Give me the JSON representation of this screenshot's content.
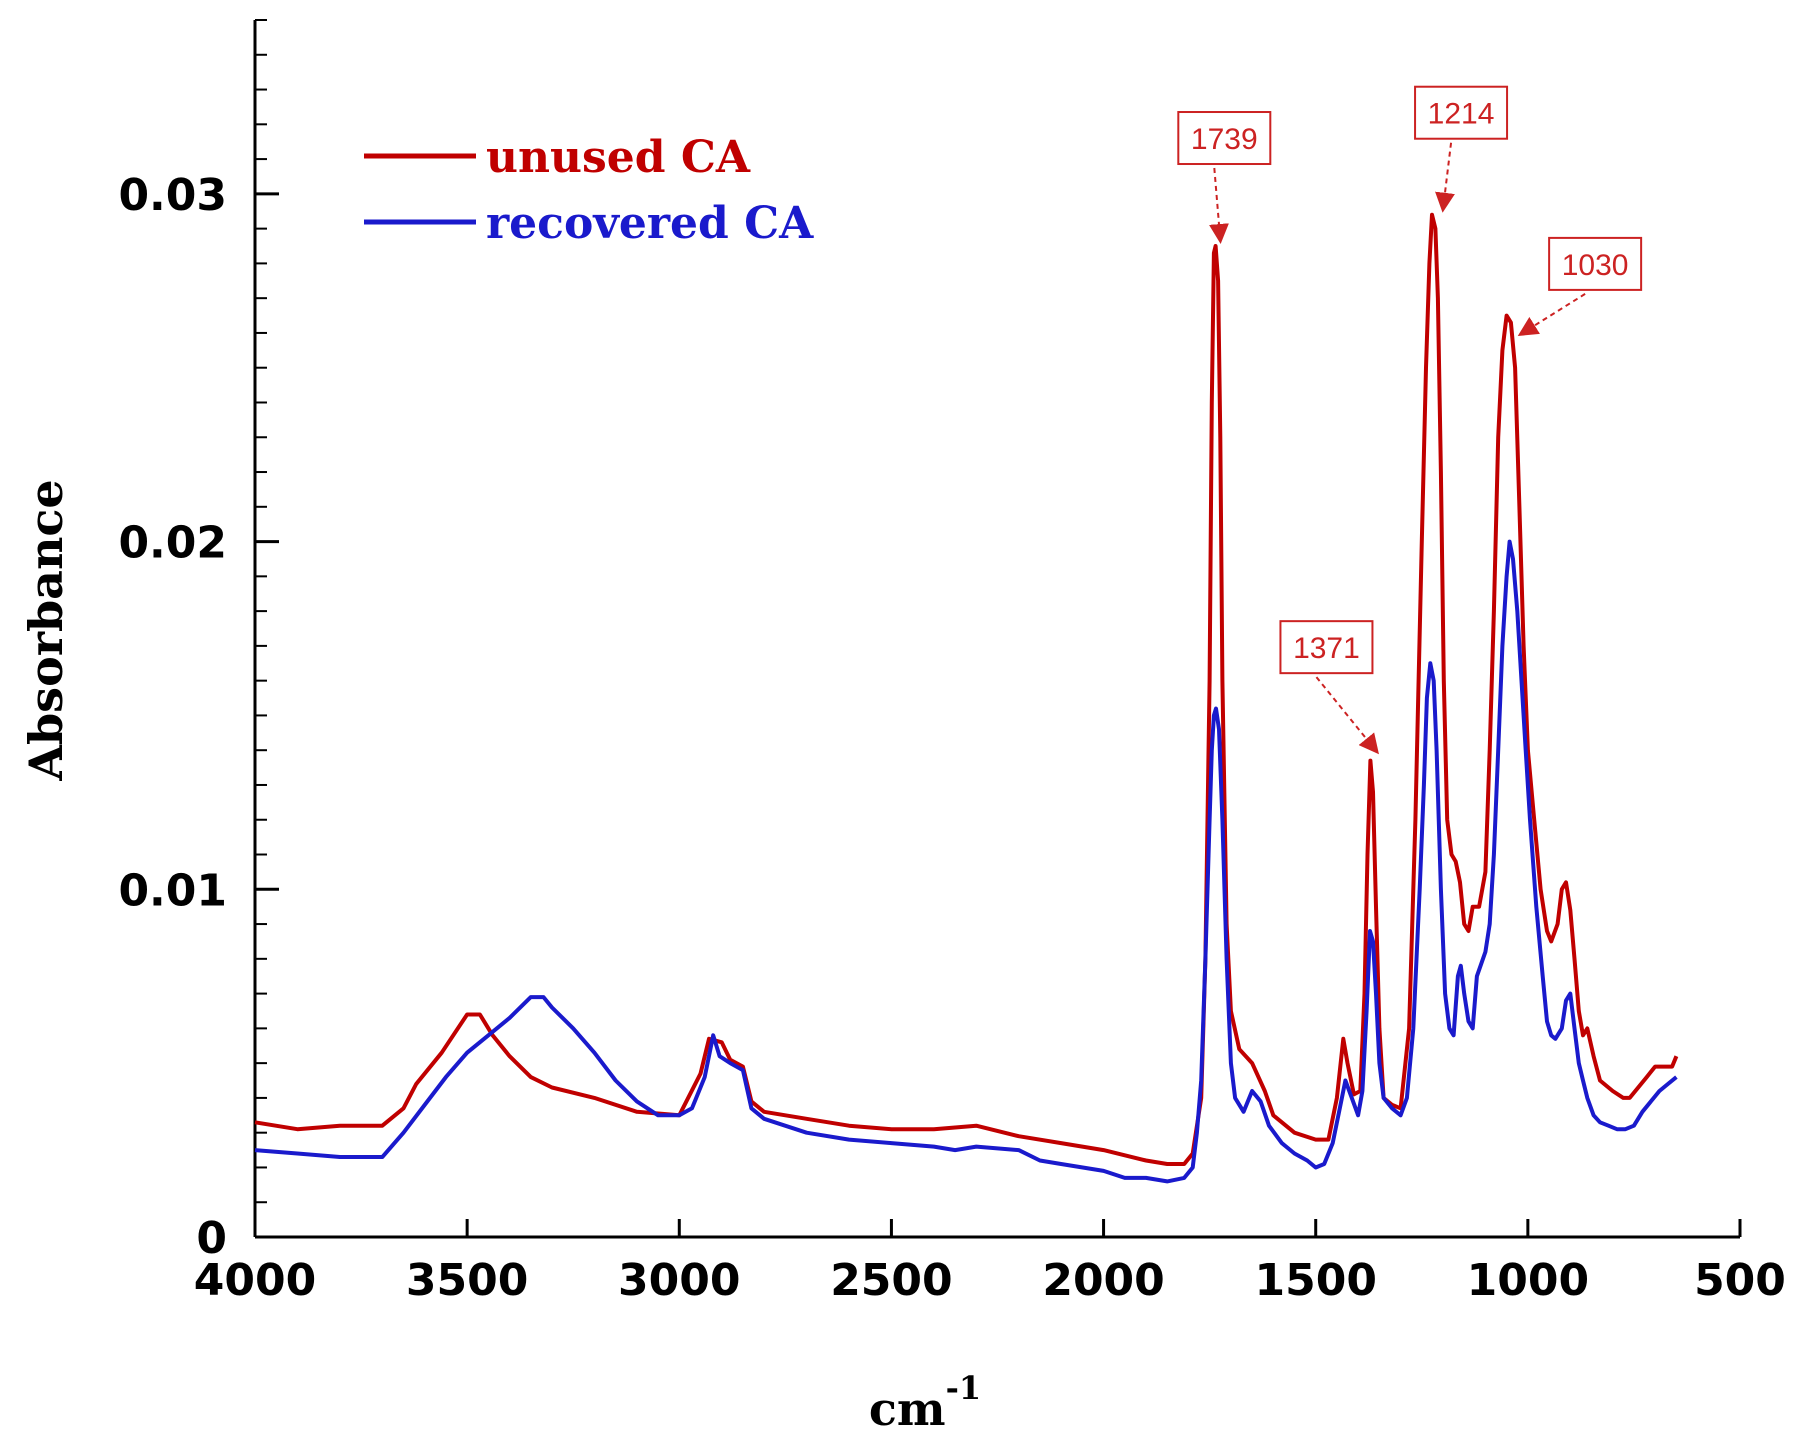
{
  "chart_data": {
    "type": "line",
    "xlabel": "cm",
    "xlabel_sup": "-1",
    "ylabel": "Absorbance",
    "xlim": [
      4000,
      500
    ],
    "ylim": [
      0,
      0.035
    ],
    "x_ticks": [
      4000,
      3500,
      3000,
      2500,
      2000,
      1500,
      1000,
      500
    ],
    "x_tick_labels": [
      "4000",
      "3500",
      "3000",
      "2500",
      "2000",
      "1500",
      "1000",
      "500"
    ],
    "y_ticks": [
      0,
      0.01,
      0.02,
      0.03
    ],
    "y_tick_labels": [
      "0",
      "0.01",
      "0.02",
      "0.03"
    ],
    "y_minor_step": 0.001,
    "series": [
      {
        "name": "unused CA",
        "color": "#c00000",
        "points": [
          [
            4000,
            0.0033
          ],
          [
            3900,
            0.0031
          ],
          [
            3800,
            0.0032
          ],
          [
            3700,
            0.0032
          ],
          [
            3650,
            0.0037
          ],
          [
            3620,
            0.0044
          ],
          [
            3560,
            0.0053
          ],
          [
            3500,
            0.0064
          ],
          [
            3470,
            0.0064
          ],
          [
            3440,
            0.0058
          ],
          [
            3400,
            0.0052
          ],
          [
            3350,
            0.0046
          ],
          [
            3300,
            0.0043
          ],
          [
            3200,
            0.004
          ],
          [
            3100,
            0.0036
          ],
          [
            3000,
            0.0035
          ],
          [
            2950,
            0.0047
          ],
          [
            2930,
            0.0057
          ],
          [
            2900,
            0.0056
          ],
          [
            2880,
            0.0051
          ],
          [
            2850,
            0.0049
          ],
          [
            2830,
            0.0039
          ],
          [
            2800,
            0.0036
          ],
          [
            2700,
            0.0034
          ],
          [
            2600,
            0.0032
          ],
          [
            2500,
            0.0031
          ],
          [
            2400,
            0.0031
          ],
          [
            2300,
            0.0032
          ],
          [
            2200,
            0.0029
          ],
          [
            2100,
            0.0027
          ],
          [
            2000,
            0.0025
          ],
          [
            1900,
            0.0022
          ],
          [
            1850,
            0.0021
          ],
          [
            1810,
            0.0021
          ],
          [
            1790,
            0.0024
          ],
          [
            1770,
            0.004
          ],
          [
            1760,
            0.008
          ],
          [
            1750,
            0.016
          ],
          [
            1745,
            0.024
          ],
          [
            1740,
            0.0283
          ],
          [
            1736,
            0.0285
          ],
          [
            1730,
            0.0275
          ],
          [
            1725,
            0.023
          ],
          [
            1720,
            0.016
          ],
          [
            1710,
            0.009
          ],
          [
            1700,
            0.0065
          ],
          [
            1680,
            0.0054
          ],
          [
            1650,
            0.005
          ],
          [
            1620,
            0.0042
          ],
          [
            1600,
            0.0035
          ],
          [
            1550,
            0.003
          ],
          [
            1500,
            0.0028
          ],
          [
            1470,
            0.0028
          ],
          [
            1450,
            0.004
          ],
          [
            1435,
            0.0057
          ],
          [
            1425,
            0.005
          ],
          [
            1410,
            0.0041
          ],
          [
            1395,
            0.0042
          ],
          [
            1385,
            0.007
          ],
          [
            1378,
            0.011
          ],
          [
            1371,
            0.0137
          ],
          [
            1365,
            0.0128
          ],
          [
            1358,
            0.0095
          ],
          [
            1350,
            0.006
          ],
          [
            1340,
            0.004
          ],
          [
            1320,
            0.0038
          ],
          [
            1300,
            0.0037
          ],
          [
            1280,
            0.006
          ],
          [
            1265,
            0.012
          ],
          [
            1250,
            0.02
          ],
          [
            1240,
            0.025
          ],
          [
            1232,
            0.028
          ],
          [
            1226,
            0.0294
          ],
          [
            1218,
            0.029
          ],
          [
            1212,
            0.027
          ],
          [
            1205,
            0.022
          ],
          [
            1198,
            0.016
          ],
          [
            1190,
            0.012
          ],
          [
            1180,
            0.011
          ],
          [
            1170,
            0.0108
          ],
          [
            1160,
            0.0102
          ],
          [
            1150,
            0.009
          ],
          [
            1140,
            0.0088
          ],
          [
            1130,
            0.0095
          ],
          [
            1115,
            0.0095
          ],
          [
            1100,
            0.0105
          ],
          [
            1090,
            0.014
          ],
          [
            1080,
            0.018
          ],
          [
            1070,
            0.023
          ],
          [
            1060,
            0.0255
          ],
          [
            1050,
            0.0265
          ],
          [
            1040,
            0.0263
          ],
          [
            1030,
            0.025
          ],
          [
            1020,
            0.021
          ],
          [
            1010,
            0.017
          ],
          [
            1000,
            0.014
          ],
          [
            985,
            0.012
          ],
          [
            970,
            0.01
          ],
          [
            955,
            0.0088
          ],
          [
            945,
            0.0085
          ],
          [
            930,
            0.009
          ],
          [
            920,
            0.01
          ],
          [
            910,
            0.0102
          ],
          [
            900,
            0.0094
          ],
          [
            890,
            0.008
          ],
          [
            880,
            0.0065
          ],
          [
            870,
            0.0058
          ],
          [
            860,
            0.006
          ],
          [
            845,
            0.0052
          ],
          [
            830,
            0.0045
          ],
          [
            800,
            0.0042
          ],
          [
            775,
            0.004
          ],
          [
            760,
            0.004
          ],
          [
            740,
            0.0043
          ],
          [
            720,
            0.0046
          ],
          [
            700,
            0.0049
          ],
          [
            680,
            0.0049
          ],
          [
            660,
            0.0049
          ],
          [
            650,
            0.0052
          ]
        ]
      },
      {
        "name": "recovered CA",
        "color": "#1a1acc",
        "points": [
          [
            4000,
            0.0025
          ],
          [
            3900,
            0.0024
          ],
          [
            3800,
            0.0023
          ],
          [
            3700,
            0.0023
          ],
          [
            3650,
            0.003
          ],
          [
            3600,
            0.0038
          ],
          [
            3550,
            0.0046
          ],
          [
            3500,
            0.0053
          ],
          [
            3450,
            0.0058
          ],
          [
            3400,
            0.0063
          ],
          [
            3350,
            0.0069
          ],
          [
            3320,
            0.0069
          ],
          [
            3300,
            0.0066
          ],
          [
            3250,
            0.006
          ],
          [
            3200,
            0.0053
          ],
          [
            3150,
            0.0045
          ],
          [
            3100,
            0.0039
          ],
          [
            3050,
            0.0035
          ],
          [
            3000,
            0.0035
          ],
          [
            2970,
            0.0037
          ],
          [
            2940,
            0.0046
          ],
          [
            2920,
            0.0058
          ],
          [
            2905,
            0.0052
          ],
          [
            2880,
            0.005
          ],
          [
            2850,
            0.0048
          ],
          [
            2830,
            0.0037
          ],
          [
            2800,
            0.0034
          ],
          [
            2700,
            0.003
          ],
          [
            2600,
            0.0028
          ],
          [
            2500,
            0.0027
          ],
          [
            2400,
            0.0026
          ],
          [
            2350,
            0.0025
          ],
          [
            2300,
            0.0026
          ],
          [
            2200,
            0.0025
          ],
          [
            2150,
            0.0022
          ],
          [
            2100,
            0.0021
          ],
          [
            2000,
            0.0019
          ],
          [
            1950,
            0.0017
          ],
          [
            1900,
            0.0017
          ],
          [
            1850,
            0.0016
          ],
          [
            1810,
            0.0017
          ],
          [
            1790,
            0.002
          ],
          [
            1780,
            0.003
          ],
          [
            1770,
            0.0045
          ],
          [
            1760,
            0.008
          ],
          [
            1750,
            0.012
          ],
          [
            1745,
            0.014
          ],
          [
            1740,
            0.015
          ],
          [
            1735,
            0.0152
          ],
          [
            1728,
            0.0146
          ],
          [
            1720,
            0.012
          ],
          [
            1710,
            0.008
          ],
          [
            1700,
            0.005
          ],
          [
            1690,
            0.004
          ],
          [
            1670,
            0.0036
          ],
          [
            1650,
            0.0042
          ],
          [
            1630,
            0.0039
          ],
          [
            1610,
            0.0032
          ],
          [
            1580,
            0.0027
          ],
          [
            1550,
            0.0024
          ],
          [
            1520,
            0.0022
          ],
          [
            1500,
            0.002
          ],
          [
            1480,
            0.0021
          ],
          [
            1460,
            0.0027
          ],
          [
            1440,
            0.0039
          ],
          [
            1430,
            0.0045
          ],
          [
            1415,
            0.004
          ],
          [
            1400,
            0.0035
          ],
          [
            1390,
            0.0042
          ],
          [
            1380,
            0.0065
          ],
          [
            1372,
            0.0088
          ],
          [
            1365,
            0.0085
          ],
          [
            1358,
            0.007
          ],
          [
            1350,
            0.005
          ],
          [
            1340,
            0.004
          ],
          [
            1320,
            0.0037
          ],
          [
            1300,
            0.0035
          ],
          [
            1285,
            0.004
          ],
          [
            1270,
            0.006
          ],
          [
            1255,
            0.01
          ],
          [
            1245,
            0.013
          ],
          [
            1238,
            0.0155
          ],
          [
            1230,
            0.0165
          ],
          [
            1222,
            0.016
          ],
          [
            1215,
            0.014
          ],
          [
            1205,
            0.01
          ],
          [
            1195,
            0.007
          ],
          [
            1185,
            0.006
          ],
          [
            1175,
            0.0058
          ],
          [
            1165,
            0.0075
          ],
          [
            1158,
            0.0078
          ],
          [
            1150,
            0.007
          ],
          [
            1140,
            0.0062
          ],
          [
            1130,
            0.006
          ],
          [
            1120,
            0.0075
          ],
          [
            1100,
            0.0082
          ],
          [
            1090,
            0.009
          ],
          [
            1080,
            0.011
          ],
          [
            1070,
            0.014
          ],
          [
            1060,
            0.017
          ],
          [
            1050,
            0.019
          ],
          [
            1043,
            0.02
          ],
          [
            1035,
            0.0195
          ],
          [
            1025,
            0.018
          ],
          [
            1015,
            0.016
          ],
          [
            1005,
            0.014
          ],
          [
            995,
            0.012
          ],
          [
            980,
            0.0095
          ],
          [
            965,
            0.0075
          ],
          [
            955,
            0.0062
          ],
          [
            945,
            0.0058
          ],
          [
            935,
            0.0057
          ],
          [
            920,
            0.006
          ],
          [
            910,
            0.0068
          ],
          [
            900,
            0.007
          ],
          [
            890,
            0.006
          ],
          [
            880,
            0.005
          ],
          [
            870,
            0.0045
          ],
          [
            860,
            0.004
          ],
          [
            845,
            0.0035
          ],
          [
            830,
            0.0033
          ],
          [
            810,
            0.0032
          ],
          [
            790,
            0.0031
          ],
          [
            770,
            0.0031
          ],
          [
            750,
            0.0032
          ],
          [
            730,
            0.0036
          ],
          [
            710,
            0.0039
          ],
          [
            690,
            0.0042
          ],
          [
            670,
            0.0044
          ],
          [
            650,
            0.0046
          ]
        ]
      }
    ],
    "annotations": [
      {
        "label": "1739",
        "x": 1739,
        "y": 0.0285
      },
      {
        "label": "1214",
        "x": 1214,
        "y": 0.0294
      },
      {
        "label": "1030",
        "x": 1030,
        "y": 0.0258
      },
      {
        "label": "1371",
        "x": 1371,
        "y": 0.0138
      }
    ],
    "annotation_color": "#cc2222",
    "legend_position": "top-left"
  }
}
